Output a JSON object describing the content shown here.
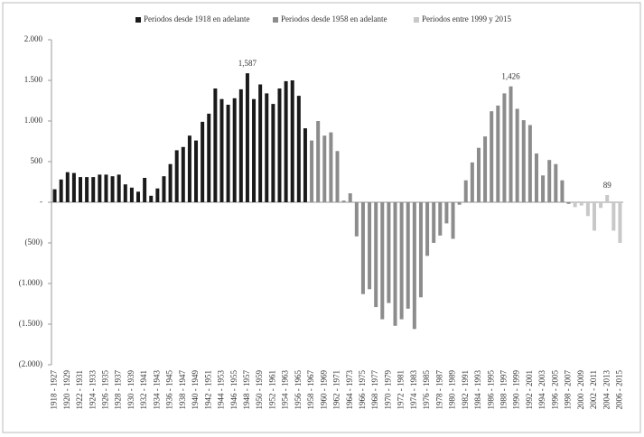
{
  "chart_data": {
    "type": "bar",
    "categories": [
      "1918 - 1927",
      null,
      "1920 - 1929",
      null,
      "1922 - 1931",
      null,
      "1924 - 1933",
      null,
      "1926 - 1935",
      null,
      "1928 - 1937",
      null,
      "1930 - 1939",
      null,
      "1932 - 1941",
      null,
      "1934 - 1943",
      null,
      "1936 - 1945",
      null,
      "1938 - 1947",
      null,
      "1940 - 1949",
      null,
      "1942 - 1951",
      null,
      "1944 - 1953",
      null,
      "1946 - 1955",
      null,
      "1948 - 1957",
      null,
      "1950 - 1959",
      null,
      "1952 - 1961",
      null,
      "1954 - 1963",
      null,
      "1956 - 1965",
      null,
      "1958 - 1967",
      null,
      "1960 - 1969",
      null,
      "1962 - 1971",
      null,
      "1964 - 1973",
      null,
      "1966 - 1975",
      null,
      "1968 - 1977",
      null,
      "1970 - 1979",
      null,
      "1972 - 1981",
      null,
      "1974 - 1983",
      null,
      "1976 - 1985",
      null,
      "1978 - 1987",
      null,
      "1980 - 1989",
      null,
      "1982 - 1991",
      null,
      "1984 - 1993",
      null,
      "1986 - 1995",
      null,
      "1988 - 1997",
      null,
      "1990 - 1999",
      null,
      "1992 - 2001",
      null,
      "1994 - 2003",
      null,
      "1996 - 2005",
      null,
      "1998 - 2007",
      null,
      "2000 - 2009",
      null,
      "2002 - 2011",
      null,
      "2004 - 2013",
      null,
      "2006 - 2015"
    ],
    "series": [
      {
        "name": "Periodos desde 1918 en adelante",
        "color": "#1a1a1a",
        "values": [
          160,
          280,
          370,
          360,
          310,
          310,
          310,
          340,
          340,
          320,
          340,
          220,
          180,
          130,
          300,
          80,
          170,
          320,
          470,
          640,
          680,
          820,
          760,
          990,
          1090,
          1400,
          1270,
          1200,
          1280,
          1390,
          1587,
          1270,
          1450,
          1340,
          1210,
          1400,
          1490,
          1500,
          1310,
          910,
          null,
          null,
          null,
          null,
          null,
          null,
          null,
          null,
          null,
          null,
          null,
          null,
          null,
          null,
          null,
          null,
          null,
          null,
          null,
          null,
          null,
          null,
          null,
          null,
          null,
          null,
          null,
          null,
          null,
          null,
          null,
          null,
          null,
          null,
          null,
          null,
          null,
          null,
          null,
          null,
          null,
          null,
          null,
          null,
          null,
          null,
          null,
          null,
          null
        ],
        "value_labels": [
          null,
          null,
          null,
          null,
          null,
          null,
          null,
          null,
          null,
          null,
          null,
          null,
          null,
          null,
          null,
          null,
          null,
          null,
          null,
          null,
          null,
          null,
          null,
          null,
          null,
          null,
          null,
          null,
          null,
          null,
          "1,587",
          null,
          null,
          null,
          null,
          null,
          null,
          null,
          null,
          null,
          null,
          null,
          null,
          null,
          null,
          null,
          null,
          null,
          null,
          null,
          null,
          null,
          null,
          null,
          null,
          null,
          null,
          null,
          null,
          null,
          null,
          null,
          null,
          null,
          null,
          null,
          null,
          null,
          null,
          null,
          null,
          null,
          null,
          null,
          null,
          null,
          null,
          null,
          null,
          null,
          null,
          null,
          null,
          null,
          null,
          null,
          null,
          null,
          null
        ]
      },
      {
        "name": "Periodos desde 1958 en adelante",
        "color": "#8c8c8c",
        "values": [
          null,
          null,
          null,
          null,
          null,
          null,
          null,
          null,
          null,
          null,
          null,
          null,
          null,
          null,
          null,
          null,
          null,
          null,
          null,
          null,
          null,
          null,
          null,
          null,
          null,
          null,
          null,
          null,
          null,
          null,
          null,
          null,
          null,
          null,
          null,
          null,
          null,
          null,
          null,
          null,
          760,
          1000,
          820,
          860,
          630,
          20,
          110,
          -420,
          -1130,
          -1070,
          -1290,
          -1440,
          -1240,
          -1520,
          -1440,
          -1310,
          -1560,
          -1170,
          -660,
          -500,
          -410,
          -260,
          -450,
          -30,
          270,
          490,
          670,
          810,
          1120,
          1190,
          1340,
          1426,
          1150,
          1010,
          950,
          600,
          330,
          520,
          470,
          270,
          -20,
          null,
          null,
          null,
          null,
          null,
          null,
          null,
          null
        ],
        "value_labels": [
          null,
          null,
          null,
          null,
          null,
          null,
          null,
          null,
          null,
          null,
          null,
          null,
          null,
          null,
          null,
          null,
          null,
          null,
          null,
          null,
          null,
          null,
          null,
          null,
          null,
          null,
          null,
          null,
          null,
          null,
          null,
          null,
          null,
          null,
          null,
          null,
          null,
          null,
          null,
          null,
          null,
          null,
          null,
          null,
          null,
          null,
          null,
          null,
          null,
          null,
          null,
          null,
          null,
          null,
          null,
          null,
          null,
          null,
          null,
          null,
          null,
          null,
          null,
          null,
          null,
          null,
          null,
          null,
          null,
          null,
          null,
          "1,426",
          null,
          null,
          null,
          null,
          null,
          null,
          null,
          null,
          null,
          null,
          null,
          null,
          null,
          null,
          null,
          null,
          null
        ]
      },
      {
        "name": "Periodos entre 1999 y 2015",
        "color": "#c8c8c8",
        "values": [
          null,
          null,
          null,
          null,
          null,
          null,
          null,
          null,
          null,
          null,
          null,
          null,
          null,
          null,
          null,
          null,
          null,
          null,
          null,
          null,
          null,
          null,
          null,
          null,
          null,
          null,
          null,
          null,
          null,
          null,
          null,
          null,
          null,
          null,
          null,
          null,
          null,
          null,
          null,
          null,
          null,
          null,
          null,
          null,
          null,
          null,
          null,
          null,
          null,
          null,
          null,
          null,
          null,
          null,
          null,
          null,
          null,
          null,
          null,
          null,
          null,
          null,
          null,
          null,
          null,
          null,
          null,
          null,
          null,
          null,
          null,
          null,
          null,
          null,
          null,
          null,
          null,
          null,
          null,
          null,
          null,
          -60,
          -40,
          -170,
          -350,
          -70,
          89,
          -350,
          -500
        ],
        "value_labels": [
          null,
          null,
          null,
          null,
          null,
          null,
          null,
          null,
          null,
          null,
          null,
          null,
          null,
          null,
          null,
          null,
          null,
          null,
          null,
          null,
          null,
          null,
          null,
          null,
          null,
          null,
          null,
          null,
          null,
          null,
          null,
          null,
          null,
          null,
          null,
          null,
          null,
          null,
          null,
          null,
          null,
          null,
          null,
          null,
          null,
          null,
          null,
          null,
          null,
          null,
          null,
          null,
          null,
          null,
          null,
          null,
          null,
          null,
          null,
          null,
          null,
          null,
          null,
          null,
          null,
          null,
          null,
          null,
          null,
          null,
          null,
          null,
          null,
          null,
          null,
          null,
          null,
          null,
          null,
          null,
          null,
          null,
          null,
          null,
          null,
          null,
          "89",
          null,
          null
        ]
      }
    ],
    "ylim": [
      -2000,
      2000
    ],
    "yticks": [
      {
        "value": 2000,
        "label": "2.000"
      },
      {
        "value": 1500,
        "label": "1.500"
      },
      {
        "value": 1000,
        "label": "1.000"
      },
      500,
      {
        "value": 0,
        "label": "-"
      },
      {
        "value": -500,
        "label": "(500)"
      },
      {
        "value": -1000,
        "label": "(1.000)"
      },
      {
        "value": -1500,
        "label": "(1.500)"
      },
      {
        "value": -2000,
        "label": "(2.000)"
      }
    ],
    "legend": "top"
  }
}
